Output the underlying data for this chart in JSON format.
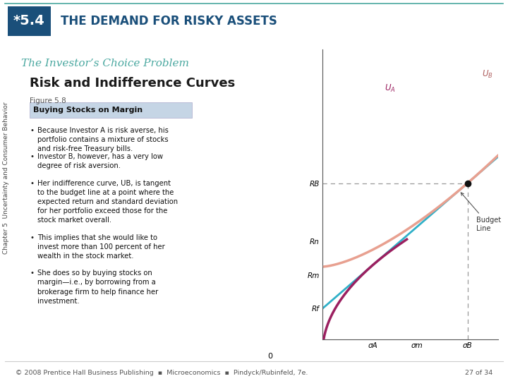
{
  "title_box_text": "*5.4",
  "title_box_color": "#1a4f7a",
  "title_text": "THE DEMAND FOR RISKY ASSETS",
  "title_text_color": "#1a4f7a",
  "subtitle_text": "The Investor’s Choice Problem",
  "subtitle_color": "#4aa8a0",
  "section_title": "Risk and Indifference Curves",
  "figure_label": "Figure 5.8",
  "box_label": "Buying Stocks on Margin",
  "box_label_bg": "#c5d5e5",
  "body_texts": [
    "Because Investor A is risk averse, his\nportfolio contains a mixture of stocks\nand risk-free Treasury bills.",
    "Investor B, however, has a very low\ndegree of risk aversion.",
    "Her indifference curve, UB, is tangent\nto the budget line at a point where the\nexpected return and standard deviation\nfor her portfolio exceed those for the\nstock market overall.",
    "This implies that she would like to\ninvest more than 100 percent of her\nwealth in the stock market.",
    "She does so by buying stocks on\nmargin—i.e., by borrowing from a\nbrokerage firm to help finance her\ninvestment."
  ],
  "side_label": "Chapter 5  Uncertainty and Consumer Behavior",
  "footer_text": "© 2008 Prentice Hall Business Publishing  ▪  Microeconomics  ▪  Pindyck/Rubinfeld, 7e.",
  "page_text": "27 of 34",
  "bg_color": "#ffffff",
  "top_line_color": "#4aa8a0",
  "chart": {
    "xlim": [
      0,
      5.2
    ],
    "ylim": [
      0,
      5.2
    ],
    "x_ticks": [
      1.5,
      2.8,
      4.3
    ],
    "x_tick_labels": [
      "σA",
      "σm",
      "σB"
    ],
    "y_ticks": [
      0.55,
      1.15,
      1.75,
      2.8
    ],
    "y_tick_labels": [
      "Rf",
      "Rm",
      "Rn",
      "RB"
    ],
    "budget_line_color": "#30b0c8",
    "ua_color": "#9b2060",
    "ub_color": "#e8a090",
    "dashed_line_color": "#999999",
    "point_color": "#111111",
    "point_B_x": 4.3,
    "point_B_y": 2.8
  }
}
